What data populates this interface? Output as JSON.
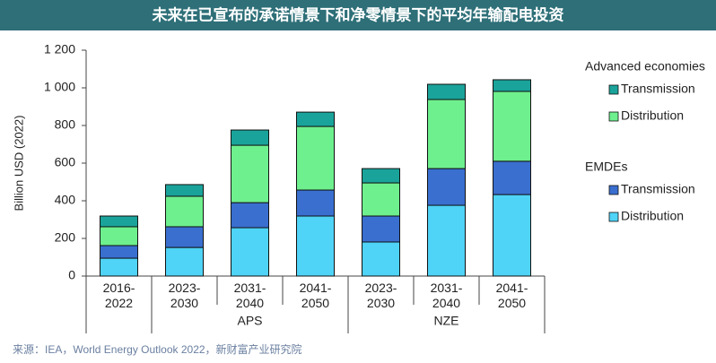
{
  "chart_data": {
    "type": "stacked_bar",
    "title": "未来在已宣布的承诺情景下和净零情景下的平均年输配电投资",
    "y_label": "Billion USD (2022)",
    "source": "来源：IEA，World Energy Outlook 2022，新财富产业研究院",
    "categories": [
      "2016-2022",
      "2023-2030",
      "2031-2040",
      "2041-2050",
      "2023-2030",
      "2031-2040",
      "2041-2050"
    ],
    "groups": [
      null,
      "APS",
      "APS",
      "APS",
      "NZE",
      "NZE",
      "NZE"
    ],
    "series": [
      {
        "name": "Distribution",
        "group": "EMDEs",
        "color": "#4fd3f7",
        "values": [
          95,
          152,
          257,
          319,
          181,
          376,
          433
        ]
      },
      {
        "name": "Transmission",
        "group": "EMDEs",
        "color": "#3a6fcf",
        "values": [
          67,
          110,
          133,
          138,
          138,
          195,
          177
        ]
      },
      {
        "name": "Distribution",
        "group": "Advanced economies",
        "color": "#6ef08e",
        "values": [
          100,
          162,
          305,
          338,
          176,
          367,
          371
        ]
      },
      {
        "name": "Transmission",
        "group": "Advanced economies",
        "color": "#1aa39a",
        "values": [
          57,
          62,
          81,
          76,
          76,
          81,
          62
        ]
      }
    ],
    "ylim": [
      0,
      1200
    ],
    "yticks": [
      0,
      200,
      400,
      600,
      800,
      {
        "value": 1000,
        "label": "1 000"
      },
      {
        "value": 1200,
        "label": "1 200"
      }
    ],
    "grid": false
  }
}
